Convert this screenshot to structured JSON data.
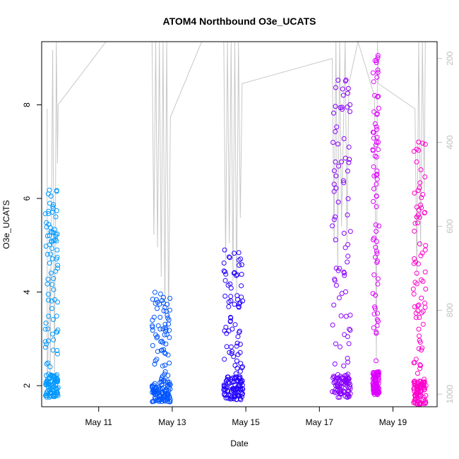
{
  "chart_data": {
    "type": "scatter",
    "title": "ATOM4 Northbound O3e_UCATS",
    "xlabel": "Date",
    "ylabel": "O3e_UCATS",
    "x_tick_labels": [
      "May 11",
      "May 13",
      "May 15",
      "May 17",
      "May 19"
    ],
    "x_tick_days": [
      11,
      13,
      15,
      17,
      19
    ],
    "xlim_days": [
      9.45,
      20.2
    ],
    "y_ticks": [
      2,
      4,
      6,
      8
    ],
    "ylim": [
      1.55,
      9.35
    ],
    "y2_label": "",
    "y2_ticks": [
      200,
      400,
      600,
      800,
      1000
    ],
    "y2lim_inverted": [
      1030,
      160
    ],
    "grid": false,
    "legend": "none",
    "colors": {
      "altitude_line": "#c8c8c8",
      "right_axis": "#c0c0c0"
    },
    "series": [
      {
        "day_start": 9.55,
        "day_end": 9.9,
        "o3_min": 1.75,
        "o3_max": 6.2,
        "color": "#0099ff"
      },
      {
        "day_start": 12.45,
        "day_end": 12.95,
        "o3_min": 1.65,
        "o3_max": 4.0,
        "color": "#0055ff"
      },
      {
        "day_start": 14.4,
        "day_end": 14.92,
        "o3_min": 1.7,
        "o3_max": 4.9,
        "color": "#2200ff"
      },
      {
        "day_start": 17.35,
        "day_end": 17.85,
        "o3_min": 1.75,
        "o3_max": 8.6,
        "color": "#8800ff"
      },
      {
        "day_start": 18.45,
        "day_end": 18.62,
        "o3_min": 1.8,
        "o3_max": 9.1,
        "color": "#dd00ff"
      },
      {
        "day_start": 19.55,
        "day_end": 19.9,
        "o3_min": 1.6,
        "o3_max": 7.3,
        "color": "#ff00cc"
      }
    ],
    "pressure_profile": [
      [
        9.6,
        320
      ],
      [
        9.6,
        980
      ],
      [
        9.68,
        700
      ],
      [
        9.68,
        980
      ],
      [
        9.75,
        180
      ],
      [
        9.8,
        980
      ],
      [
        9.85,
        160
      ],
      [
        9.88,
        450
      ],
      [
        9.9,
        310
      ],
      [
        11.2,
        160
      ],
      [
        12.45,
        160
      ],
      [
        12.5,
        620
      ],
      [
        12.55,
        160
      ],
      [
        12.6,
        650
      ],
      [
        12.65,
        160
      ],
      [
        12.7,
        720
      ],
      [
        12.75,
        160
      ],
      [
        12.8,
        800
      ],
      [
        12.85,
        160
      ],
      [
        12.9,
        830
      ],
      [
        12.95,
        340
      ],
      [
        13.8,
        160
      ],
      [
        14.4,
        160
      ],
      [
        14.45,
        680
      ],
      [
        14.5,
        160
      ],
      [
        14.55,
        640
      ],
      [
        14.6,
        160
      ],
      [
        14.65,
        730
      ],
      [
        14.7,
        160
      ],
      [
        14.75,
        760
      ],
      [
        14.8,
        160
      ],
      [
        14.85,
        580
      ],
      [
        14.9,
        260
      ],
      [
        17.35,
        200
      ],
      [
        17.4,
        640
      ],
      [
        17.45,
        160
      ],
      [
        17.5,
        700
      ],
      [
        17.55,
        160
      ],
      [
        17.6,
        600
      ],
      [
        17.7,
        160
      ],
      [
        17.75,
        640
      ],
      [
        17.8,
        260
      ],
      [
        18.05,
        160
      ],
      [
        18.5,
        290
      ],
      [
        18.55,
        920
      ],
      [
        18.58,
        160
      ],
      [
        18.6,
        260
      ],
      [
        19.6,
        320
      ],
      [
        19.65,
        720
      ],
      [
        19.7,
        160
      ],
      [
        19.75,
        650
      ],
      [
        19.8,
        160
      ],
      [
        19.85,
        520
      ],
      [
        19.88,
        160
      ]
    ]
  }
}
